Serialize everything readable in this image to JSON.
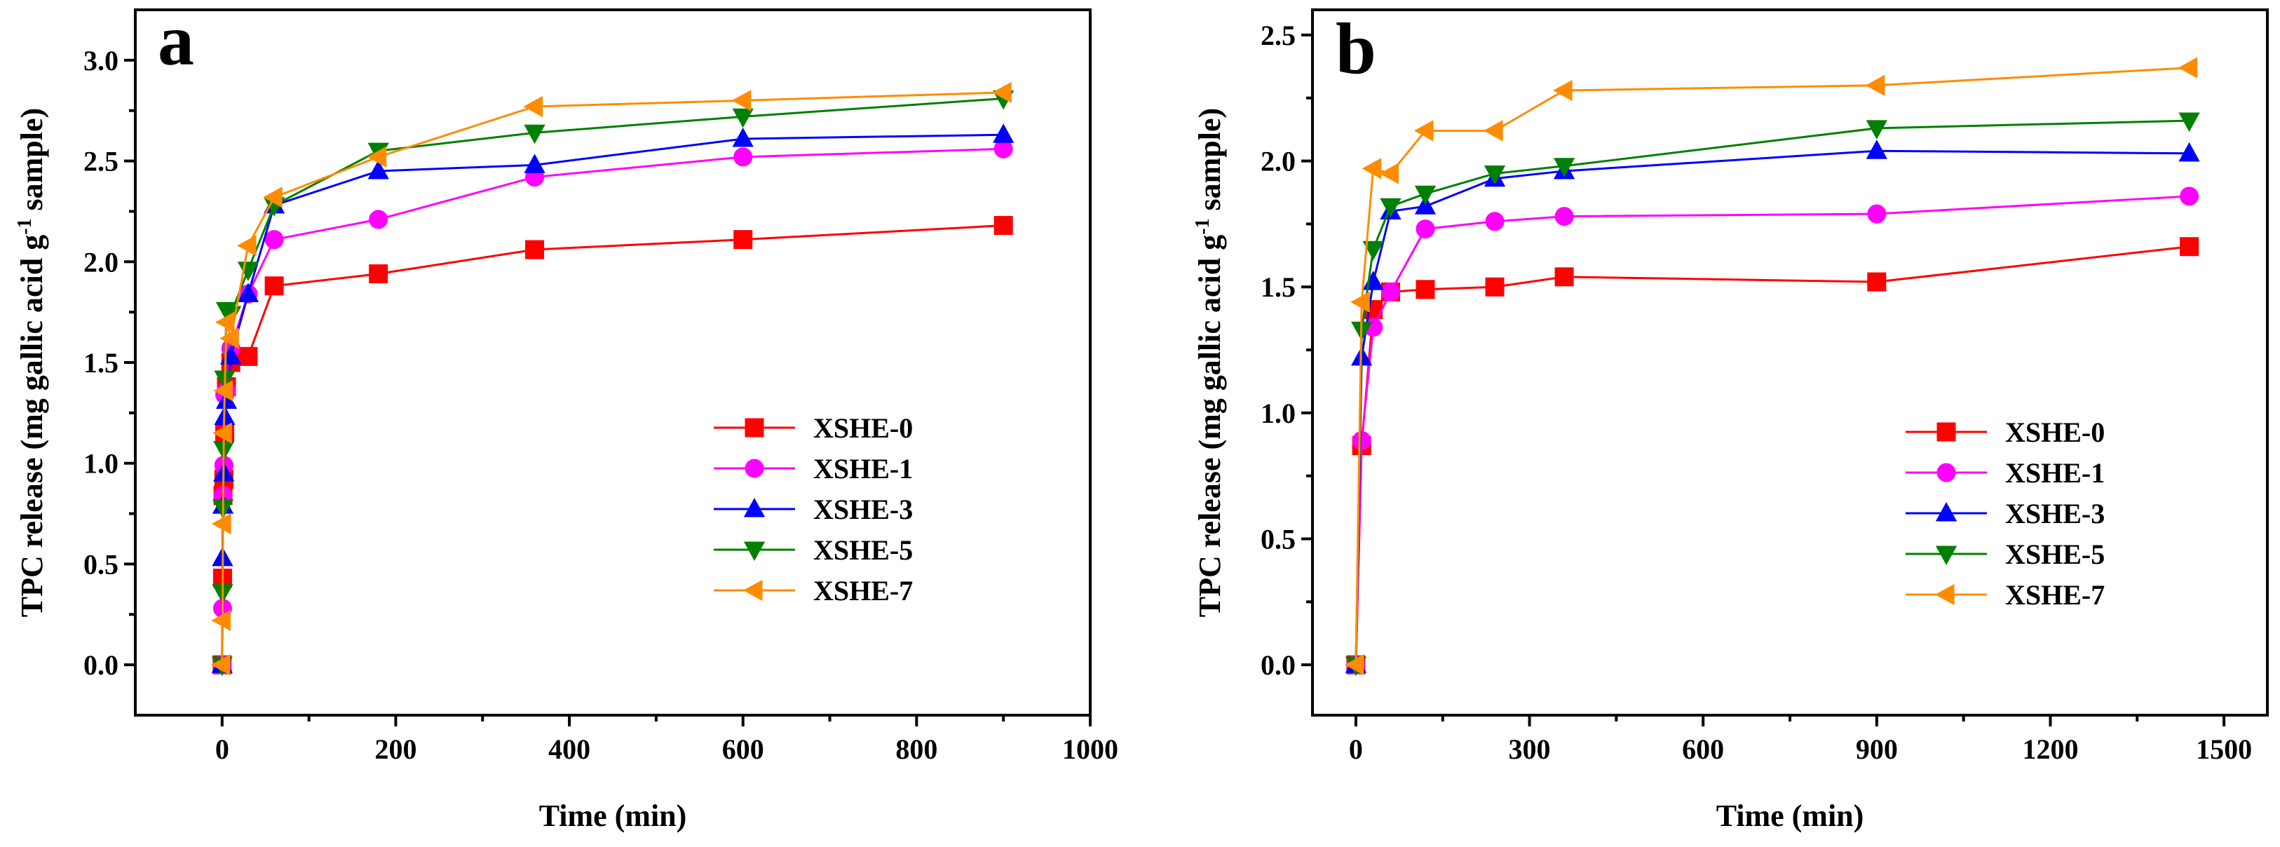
{
  "chart_data": [
    {
      "type": "line",
      "panel_label": "a",
      "xlabel": "Time (min)",
      "ylabel_main": "TPC release (mg gallic acid g",
      "ylabel_sup": "-1",
      "ylabel_end": " sample)",
      "xlim": [
        -100,
        1000
      ],
      "ylim": [
        -0.25,
        3.25
      ],
      "xticks": [
        0,
        200,
        400,
        600,
        800,
        1000
      ],
      "xtick_labels": [
        "0",
        "200",
        "400",
        "600",
        "800",
        "1000"
      ],
      "yticks": [
        0.0,
        0.5,
        1.0,
        1.5,
        2.0,
        2.5,
        3.0
      ],
      "ytick_labels": [
        "0.0",
        "0.5",
        "1.0",
        "1.5",
        "2.0",
        "2.5",
        "3.0"
      ],
      "legend_position": "lower-right",
      "series": [
        {
          "name": "XSHE-0",
          "color": "#ff0000",
          "marker": "square",
          "x": [
            0,
            0.5,
            1,
            2,
            3,
            5,
            10,
            30,
            60,
            180,
            360,
            600,
            900
          ],
          "y": [
            0,
            0.43,
            0.84,
            0.92,
            1.15,
            1.38,
            1.5,
            1.53,
            1.88,
            1.94,
            2.06,
            2.11,
            2.18
          ]
        },
        {
          "name": "XSHE-1",
          "color": "#ff00ff",
          "marker": "circle",
          "x": [
            0,
            0.5,
            1,
            2,
            3,
            5,
            10,
            30,
            60,
            180,
            360,
            600,
            900
          ],
          "y": [
            0,
            0.28,
            0.84,
            0.99,
            1.34,
            1.36,
            1.57,
            1.84,
            2.11,
            2.21,
            2.42,
            2.52,
            2.56
          ]
        },
        {
          "name": "XSHE-3",
          "color": "#0000ff",
          "marker": "triangle-up",
          "x": [
            0,
            0.5,
            1,
            2,
            3,
            5,
            10,
            30,
            60,
            180,
            360,
            600,
            900
          ],
          "y": [
            0,
            0.53,
            0.79,
            0.95,
            1.23,
            1.31,
            1.53,
            1.84,
            2.28,
            2.45,
            2.48,
            2.61,
            2.63
          ]
        },
        {
          "name": "XSHE-5",
          "color": "#008000",
          "marker": "triangle-down",
          "x": [
            0,
            0.5,
            1,
            2,
            3,
            5,
            10,
            30,
            60,
            180,
            360,
            600,
            900
          ],
          "y": [
            0,
            0.36,
            0.78,
            1.07,
            1.42,
            1.76,
            1.74,
            1.96,
            2.28,
            2.55,
            2.64,
            2.72,
            2.81
          ]
        },
        {
          "name": "XSHE-7",
          "color": "#ff8c00",
          "marker": "triangle-left",
          "x": [
            0,
            0.5,
            1,
            2,
            3,
            5,
            10,
            30,
            60,
            180,
            360,
            600,
            900
          ],
          "y": [
            0,
            0.22,
            0.7,
            1.15,
            1.36,
            1.7,
            1.62,
            2.08,
            2.32,
            2.52,
            2.77,
            2.8,
            2.84
          ]
        }
      ]
    },
    {
      "type": "line",
      "panel_label": "b",
      "xlabel": "Time (min)",
      "ylabel_main": "TPC release (mg gallic acid g",
      "ylabel_sup": "-1",
      "ylabel_end": " sample)",
      "xlim": [
        -75,
        1575
      ],
      "ylim": [
        -0.2,
        2.6
      ],
      "xticks": [
        0,
        300,
        600,
        900,
        1200,
        1500
      ],
      "xtick_labels": [
        "0",
        "300",
        "600",
        "900",
        "1200",
        "1500"
      ],
      "yticks": [
        0.0,
        0.5,
        1.0,
        1.5,
        2.0,
        2.5
      ],
      "ytick_labels": [
        "0.0",
        "0.5",
        "1.0",
        "1.5",
        "2.0",
        "2.5"
      ],
      "legend_position": "lower-right",
      "series": [
        {
          "name": "XSHE-0",
          "color": "#ff0000",
          "marker": "square",
          "x": [
            0,
            10,
            30,
            60,
            120,
            240,
            360,
            900,
            1440
          ],
          "y": [
            0,
            0.87,
            1.41,
            1.48,
            1.49,
            1.5,
            1.54,
            1.52,
            1.66
          ]
        },
        {
          "name": "XSHE-1",
          "color": "#ff00ff",
          "marker": "circle",
          "x": [
            0,
            10,
            30,
            60,
            120,
            240,
            360,
            900,
            1440
          ],
          "y": [
            0,
            0.89,
            1.34,
            1.48,
            1.73,
            1.76,
            1.78,
            1.79,
            1.86
          ]
        },
        {
          "name": "XSHE-3",
          "color": "#0000ff",
          "marker": "triangle-up",
          "x": [
            0,
            10,
            30,
            60,
            120,
            240,
            360,
            900,
            1440
          ],
          "y": [
            0,
            1.22,
            1.52,
            1.8,
            1.82,
            1.93,
            1.96,
            2.04,
            2.03
          ]
        },
        {
          "name": "XSHE-5",
          "color": "#008000",
          "marker": "triangle-down",
          "x": [
            0,
            10,
            30,
            60,
            120,
            240,
            360,
            900,
            1440
          ],
          "y": [
            0,
            1.33,
            1.65,
            1.82,
            1.87,
            1.95,
            1.98,
            2.13,
            2.16
          ]
        },
        {
          "name": "XSHE-7",
          "color": "#ff8c00",
          "marker": "triangle-left",
          "x": [
            0,
            10,
            30,
            60,
            120,
            240,
            360,
            900,
            1440
          ],
          "y": [
            0,
            1.44,
            1.97,
            1.95,
            2.12,
            2.12,
            2.28,
            2.3,
            2.37
          ]
        }
      ]
    }
  ]
}
